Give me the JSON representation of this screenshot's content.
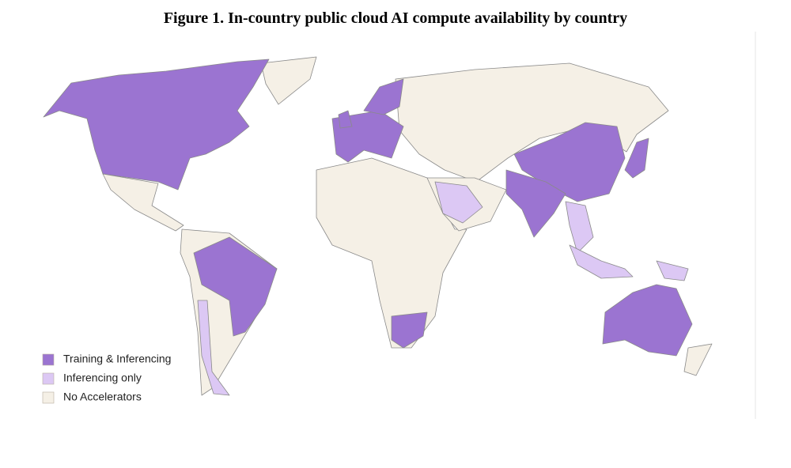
{
  "title": "Figure 1. In-country public cloud AI compute availability by country",
  "legend": [
    {
      "label": "Training & Inferencing",
      "color": "#9b74d1"
    },
    {
      "label": "Inferencing only",
      "color": "#dcc8f4"
    },
    {
      "label": "No Accelerators",
      "color": "#f5f0e6"
    }
  ]
}
